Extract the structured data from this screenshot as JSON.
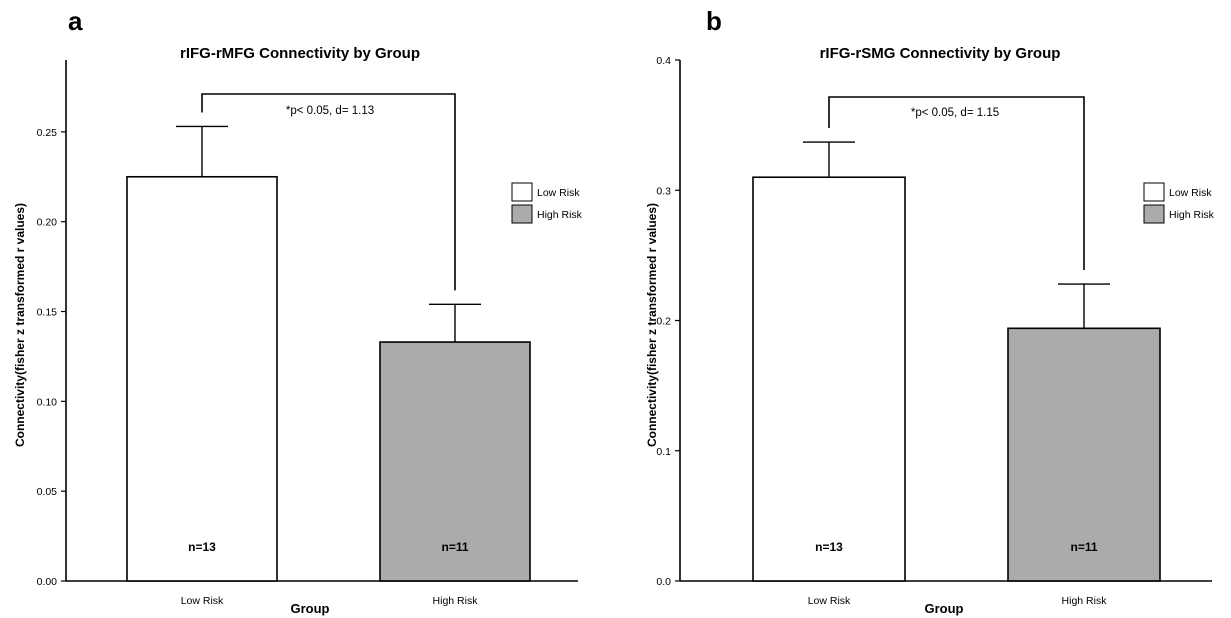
{
  "chart_data": [
    {
      "type": "bar",
      "panel": "a",
      "title": "rIFG-rMFG Connectivity by Group",
      "xlabel": "Group",
      "ylabel": "Connectivity(fisher z transformed r values)",
      "ylim": [
        0,
        0.29
      ],
      "yticks": [
        "0.00",
        "0.05",
        "0.10",
        "0.15",
        "0.20",
        "0.25"
      ],
      "categories": [
        "Low Risk",
        "High Risk"
      ],
      "values": [
        0.225,
        0.133
      ],
      "errors": [
        0.028,
        0.021
      ],
      "bar_colors": [
        "#ffffff",
        "#ababab"
      ],
      "n_labels": [
        "n=13",
        "n=11"
      ],
      "annotation": "*p< 0.05, d= 1.13",
      "legend": [
        "Low Risk",
        "High Risk"
      ],
      "legend_position": "right",
      "grid": false
    },
    {
      "type": "bar",
      "panel": "b",
      "title": "rIFG-rSMG Connectivity by Group",
      "xlabel": "Group",
      "ylabel": "Connectivity(fisher z transformed r values)",
      "ylim": [
        0,
        0.4
      ],
      "yticks": [
        "0.0",
        "0.1",
        "0.2",
        "0.3",
        "0.4"
      ],
      "categories": [
        "Low Risk",
        "High Risk"
      ],
      "values": [
        0.31,
        0.194
      ],
      "errors": [
        0.027,
        0.034
      ],
      "bar_colors": [
        "#ffffff",
        "#ababab"
      ],
      "n_labels": [
        "n=13",
        "n=11"
      ],
      "annotation": "*p< 0.05, d= 1.15",
      "legend": [
        "Low Risk",
        "High Risk"
      ],
      "legend_position": "right",
      "grid": false
    }
  ]
}
